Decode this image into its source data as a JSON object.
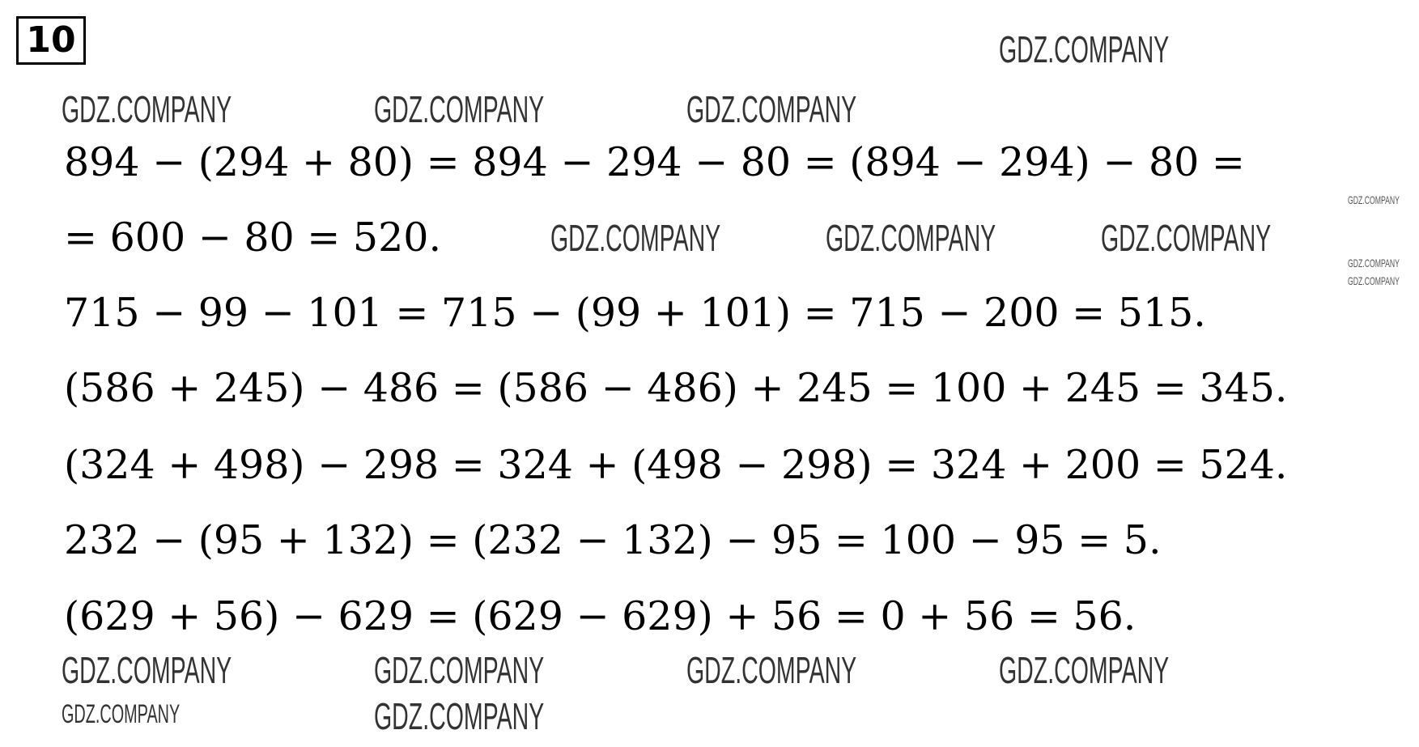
{
  "task_number": "10",
  "lines": [
    "894 − (294 + 80) = 894 − 294 − 80 = (894 − 294) − 80 =",
    "= 600 − 80 = 520.",
    "715 − 99 − 101 = 715 − (99 + 101) = 715 − 200 = 515.",
    "(586 + 245) − 486 = (586 − 486) + 245 = 100 + 245 = 345.",
    "(324 + 498) − 298 = 324 + (498 − 298) = 324 + 200 = 524.",
    "232 − (95 + 132) = (232 − 132) − 95 = 100 − 95 = 5.",
    "(629 + 56) − 629 = (629 − 629) + 56 = 0 + 56 = 56."
  ],
  "watermark": "GDZ.COMPANY"
}
